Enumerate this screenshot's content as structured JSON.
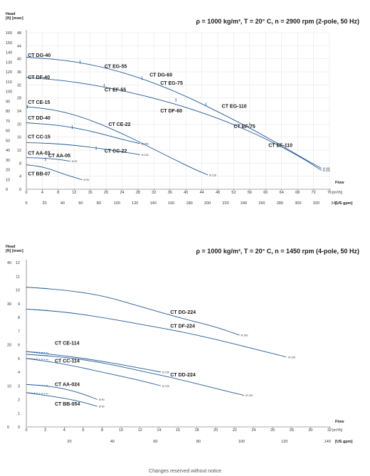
{
  "footer": "Changes reserved without notice",
  "chart_data": [
    {
      "type": "line",
      "title": "ρ = 1000 kg/m³, T = 20° C, n = 2900 rpm (2-pole, 50 Hz)",
      "ylabel": "Head",
      "ylabel_units": "[ft] [mwc]",
      "xlabel": "Flow",
      "x_units": "[m³/h]",
      "x2_units": "[US gpm]",
      "xlim": [
        0,
        76
      ],
      "ylim_mwc": [
        0,
        48
      ],
      "ylim_ft": [
        0,
        160
      ],
      "x_ticks": [
        0,
        4,
        8,
        12,
        16,
        20,
        24,
        28,
        32,
        36,
        40,
        44,
        48,
        52,
        56,
        60,
        64,
        68,
        72,
        76
      ],
      "x2_ticks": [
        0,
        20,
        40,
        60,
        80,
        100,
        120,
        140,
        160,
        180,
        200,
        220,
        240,
        260,
        280,
        300,
        320,
        340
      ],
      "y_ticks_mwc": [
        0,
        4,
        8,
        12,
        16,
        20,
        24,
        28,
        32,
        36,
        40,
        44,
        48
      ],
      "y_ticks_ft": [
        0,
        10,
        20,
        30,
        40,
        50,
        60,
        70,
        80,
        90,
        100,
        110,
        120,
        130,
        140,
        150,
        160
      ],
      "grid": true,
      "series": [
        {
          "name": "CT DG-40",
          "labels": [
            {
              "text": "CT DG-40",
              "x": 0.4,
              "y": 40.6
            }
          ],
          "points": [
            [
              0,
              40.5
            ],
            [
              10,
              39.6
            ],
            [
              20,
              37.3
            ],
            [
              30,
              33.6
            ],
            [
              40,
              28.6
            ],
            [
              50,
              22.6
            ],
            [
              60,
              16.2
            ],
            [
              69,
              9.8
            ],
            [
              74,
              6.4
            ]
          ],
          "impeller": "Ø 180"
        },
        {
          "name": "CT DF-40",
          "labels": [
            {
              "text": "CT DF-40",
              "x": 0.4,
              "y": 33.8
            }
          ],
          "points": [
            [
              0,
              34.3
            ],
            [
              10,
              33.3
            ],
            [
              20,
              31.3
            ],
            [
              30,
              28.6
            ],
            [
              40,
              25.2
            ],
            [
              50,
              20.9
            ],
            [
              60,
              15.6
            ],
            [
              69,
              9.7
            ],
            [
              74,
              5.8
            ]
          ],
          "impeller": "Ø 155"
        },
        {
          "name": "CT EG",
          "labels": [
            {
              "text": "CT EG-55",
              "x": 19.6,
              "y": 37.2
            },
            {
              "text": "CT EG-75",
              "x": 33.6,
              "y": 32.1
            },
            {
              "text": "CT EG-110",
              "x": 49,
              "y": 25
            }
          ],
          "points": [],
          "markers": [
            [
              13.5,
              39
            ],
            [
              29,
              34
            ],
            [
              45,
              26
            ]
          ]
        },
        {
          "name": "CT EF",
          "labels": [
            {
              "text": "CT EF-55",
              "x": 19.6,
              "y": 30
            },
            {
              "text": "CT DF-60",
              "x": 33.6,
              "y": 23.6
            },
            {
              "text": "CT EF-75",
              "x": 52,
              "y": 18.8
            },
            {
              "text": "CT EF-110",
              "x": 60.7,
              "y": 13
            }
          ],
          "points": [],
          "markers": [
            [
              19.5,
              31.8
            ],
            [
              37.5,
              27.4
            ],
            [
              56,
              20
            ]
          ]
        },
        {
          "name": "CT DG-60",
          "labels": [
            {
              "text": "CT DG-60",
              "x": 30.9,
              "y": 34.6
            }
          ],
          "points": []
        },
        {
          "name": "CT CE-22",
          "labels": [
            {
              "text": "CT CE-15",
              "x": 0.4,
              "y": 26.2
            },
            {
              "text": "CT CE-22",
              "x": 20.6,
              "y": 19.4
            }
          ],
          "points": [
            [
              0,
              25.3
            ],
            [
              6,
              24.6
            ],
            [
              12,
              22.9
            ],
            [
              18,
              20.3
            ],
            [
              24,
              17.1
            ],
            [
              30,
              13.5
            ],
            [
              36,
              9.8
            ],
            [
              42,
              6.2
            ],
            [
              45.5,
              4.4
            ]
          ],
          "markers": [
            [
              0.3,
              25.3
            ]
          ],
          "impeller": "Ø 130"
        },
        {
          "name": "CT CC-22",
          "labels": [
            {
              "text": "CT CC-15",
              "x": 0.4,
              "y": 15.6
            },
            {
              "text": "CT CC-22",
              "x": 19.6,
              "y": 11.2
            }
          ],
          "points": [
            [
              0,
              14.3
            ],
            [
              6,
              14.1
            ],
            [
              12,
              13.5
            ],
            [
              18,
              12.6
            ],
            [
              24,
              11.5
            ],
            [
              28.5,
              10.6
            ]
          ],
          "markers": [
            [
              17.5,
              12.6
            ]
          ],
          "impeller": "Ø 125"
        },
        {
          "name": "CT DD-40",
          "labels": [
            {
              "text": "CT DD-40",
              "x": 0.4,
              "y": 21.4
            }
          ],
          "points": [
            [
              0,
              20.4
            ],
            [
              6,
              19.9
            ],
            [
              12,
              18.9
            ],
            [
              18,
              17.3
            ],
            [
              24,
              15.3
            ],
            [
              28.5,
              14.0
            ]
          ],
          "markers": [
            [
              11.5,
              19
            ]
          ],
          "impeller": "Ø 155"
        },
        {
          "name": "CT AA-05",
          "labels": [
            {
              "text": "CT AA-03",
              "x": 0.4,
              "y": 10.6
            },
            {
              "text": "CT AA-05",
              "x": 5.5,
              "y": 9.8
            }
          ],
          "points": [
            [
              0,
              9.7
            ],
            [
              3,
              9.6
            ],
            [
              6,
              9.4
            ],
            [
              9,
              9.0
            ],
            [
              11,
              8.6
            ]
          ],
          "markers": [
            [
              4.8,
              9.2
            ]
          ],
          "impeller": "Ø 90"
        },
        {
          "name": "CT BB-07",
          "labels": [
            {
              "text": "CT BB-07",
              "x": 0.4,
              "y": 4.3
            }
          ],
          "points": [
            [
              0,
              7.5
            ],
            [
              3,
              7.1
            ],
            [
              6,
              6.2
            ],
            [
              9,
              4.8
            ],
            [
              14,
              2.9
            ]
          ],
          "impeller": "Ø 90"
        }
      ]
    },
    {
      "type": "line",
      "title": "ρ = 1000 kg/m³, T = 20° C, n = 1450 rpm (4-pole, 50 Hz)",
      "ylabel": "Head",
      "ylabel_units": "[ft] [mwc]",
      "xlabel": "Flow",
      "x_units": "[m³/h]",
      "x2_units": "[US gpm]",
      "xlim": [
        0,
        32
      ],
      "ylim_mwc": [
        0,
        12
      ],
      "ylim_ft": [
        0,
        40
      ],
      "x_ticks": [
        0,
        2,
        4,
        6,
        8,
        10,
        12,
        14,
        16,
        18,
        20,
        22,
        24,
        26,
        28,
        30,
        32
      ],
      "x2_ticks": [
        20,
        40,
        60,
        80,
        100,
        120,
        140
      ],
      "y_ticks_mwc": [
        0,
        1,
        2,
        3,
        4,
        5,
        6,
        7,
        8,
        9,
        10,
        11,
        12
      ],
      "y_ticks_ft": [
        0,
        10,
        20,
        30,
        40
      ],
      "grid": false,
      "series": [
        {
          "name": "CT DG-224",
          "labels": [
            {
              "text": "CT DG-224",
              "x": 15.2,
              "y": 8.25
            }
          ],
          "points": [
            [
              0,
              10.2
            ],
            [
              4,
              10.0
            ],
            [
              8,
              9.6
            ],
            [
              12,
              8.8
            ],
            [
              16,
              8.0
            ],
            [
              20,
              7.3
            ],
            [
              22.5,
              6.7
            ]
          ],
          "impeller": "Ø 180"
        },
        {
          "name": "CT DF-224",
          "labels": [
            {
              "text": "CT DF-224",
              "x": 15.2,
              "y": 7.25
            }
          ],
          "points": [
            [
              0,
              8.6
            ],
            [
              4,
              8.4
            ],
            [
              8,
              8.0
            ],
            [
              12,
              7.5
            ],
            [
              16,
              7.0
            ],
            [
              20,
              6.4
            ],
            [
              24,
              5.7
            ],
            [
              27.5,
              5.1
            ]
          ],
          "impeller": "Ø 155"
        },
        {
          "name": "CT CE-114",
          "labels": [
            {
              "text": "CT CE-114",
              "x": 3.0,
              "y": 6.0
            }
          ],
          "points": [
            [
              0,
              5.5
            ],
            [
              4,
              5.2
            ],
            [
              8,
              4.8
            ],
            [
              12,
              4.3
            ],
            [
              14.2,
              4.0
            ]
          ],
          "impeller": "Ø 155"
        },
        {
          "name": "CT DD-224",
          "labels": [
            {
              "text": "CT DD-224",
              "x": 15.2,
              "y": 3.7
            }
          ],
          "points": [
            [
              0,
              5.3
            ],
            [
              4,
              5.1
            ],
            [
              8,
              4.7
            ],
            [
              12,
              4.1
            ],
            [
              16,
              3.5
            ],
            [
              20,
              2.8
            ],
            [
              23,
              2.3
            ]
          ],
          "impeller": "Ø 130"
        },
        {
          "name": "CT CC-114",
          "labels": [
            {
              "text": "CT CC-114",
              "x": 3.0,
              "y": 4.7
            }
          ],
          "points": [
            [
              0,
              5.0
            ],
            [
              4,
              4.6
            ],
            [
              8,
              4.0
            ],
            [
              12,
              3.4
            ],
            [
              14.2,
              3.0
            ]
          ],
          "impeller": "Ø 120"
        },
        {
          "name": "CT AA-024",
          "labels": [
            {
              "text": "CT AA-024",
              "x": 3.0,
              "y": 3.0
            }
          ],
          "points": [
            [
              0,
              3.1
            ],
            [
              2,
              3.0
            ],
            [
              4,
              2.8
            ],
            [
              6,
              2.4
            ],
            [
              7.5,
              2.0
            ]
          ],
          "impeller": "Ø 90"
        },
        {
          "name": "CT BB-054",
          "labels": [
            {
              "text": "CT BB-054",
              "x": 3.0,
              "y": 1.55
            }
          ],
          "points": [
            [
              0,
              2.5
            ],
            [
              2,
              2.3
            ],
            [
              4,
              2.1
            ],
            [
              6,
              1.8
            ],
            [
              7.5,
              1.5
            ]
          ],
          "impeller": "Ø 90"
        }
      ]
    }
  ]
}
